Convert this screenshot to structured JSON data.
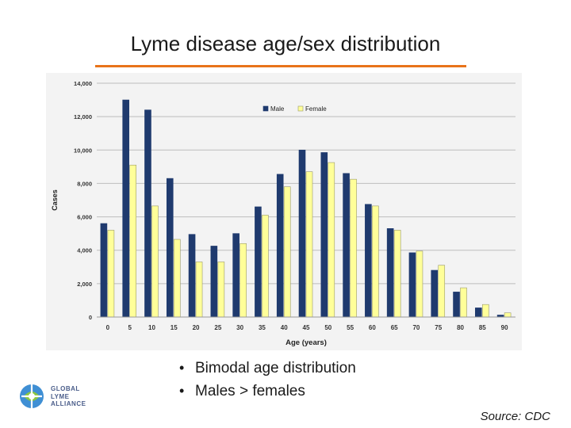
{
  "slide": {
    "title": "Lyme disease age/sex distribution",
    "bullets": [
      "Bimodal age distribution",
      "Males > females"
    ],
    "source": "Source: CDC",
    "logo": {
      "line1": "GLOBAL",
      "line2": "LYME",
      "line3": "ALLIANCE"
    }
  },
  "colors": {
    "accent": "#e8731a",
    "male": "#1f3a6e",
    "female": "#ffff99"
  },
  "chart_data": {
    "type": "bar",
    "title": "",
    "xlabel": "Age (years)",
    "ylabel": "Cases",
    "ylim": [
      0,
      14000
    ],
    "yticks": [
      0,
      2000,
      4000,
      6000,
      8000,
      10000,
      12000,
      14000
    ],
    "ytick_labels": [
      "0",
      "2,000",
      "4,000",
      "6,000",
      "8,000",
      "10,000",
      "12,000",
      "14,000"
    ],
    "categories": [
      "0",
      "5",
      "10",
      "15",
      "20",
      "25",
      "30",
      "35",
      "40",
      "45",
      "50",
      "55",
      "60",
      "65",
      "70",
      "75",
      "80",
      "85",
      "90"
    ],
    "series": [
      {
        "name": "Male",
        "color": "#1f3a6e",
        "values": [
          5600,
          13000,
          12400,
          8300,
          4950,
          4250,
          5000,
          6600,
          8550,
          10000,
          9850,
          8600,
          6750,
          5300,
          3850,
          2800,
          1500,
          550,
          120
        ]
      },
      {
        "name": "Female",
        "color": "#ffff99",
        "values": [
          5200,
          9100,
          6650,
          4650,
          3300,
          3300,
          4400,
          6100,
          7800,
          8700,
          9250,
          8250,
          6650,
          5200,
          3950,
          3100,
          1750,
          750,
          250
        ]
      }
    ],
    "legend": "top-center",
    "grid": true
  }
}
